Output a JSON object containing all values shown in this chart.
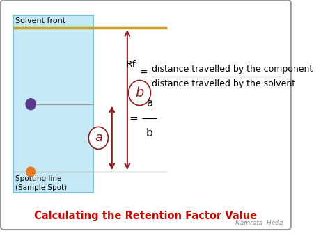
{
  "bg_color": "#ffffff",
  "border_color": "#999999",
  "paper_color": "#c5e8f5",
  "paper_border_color": "#80c0d8",
  "solvent_line_color": "#c8a030",
  "spot_line_color": "#aaaaaa",
  "arrow_color": "#8b1a1a",
  "title": "Calculating the Retention Factor Value",
  "title_color": "#cc0000",
  "watermark": "Namrata  Heda",
  "rf_line1": "distance travelled by the component",
  "rf_line2": "distance travelled by the solvent",
  "solvent_front_label": "Solvent front",
  "spotting_label_line1": "Spotting line",
  "spotting_label_line2": "(Sample Spot)"
}
